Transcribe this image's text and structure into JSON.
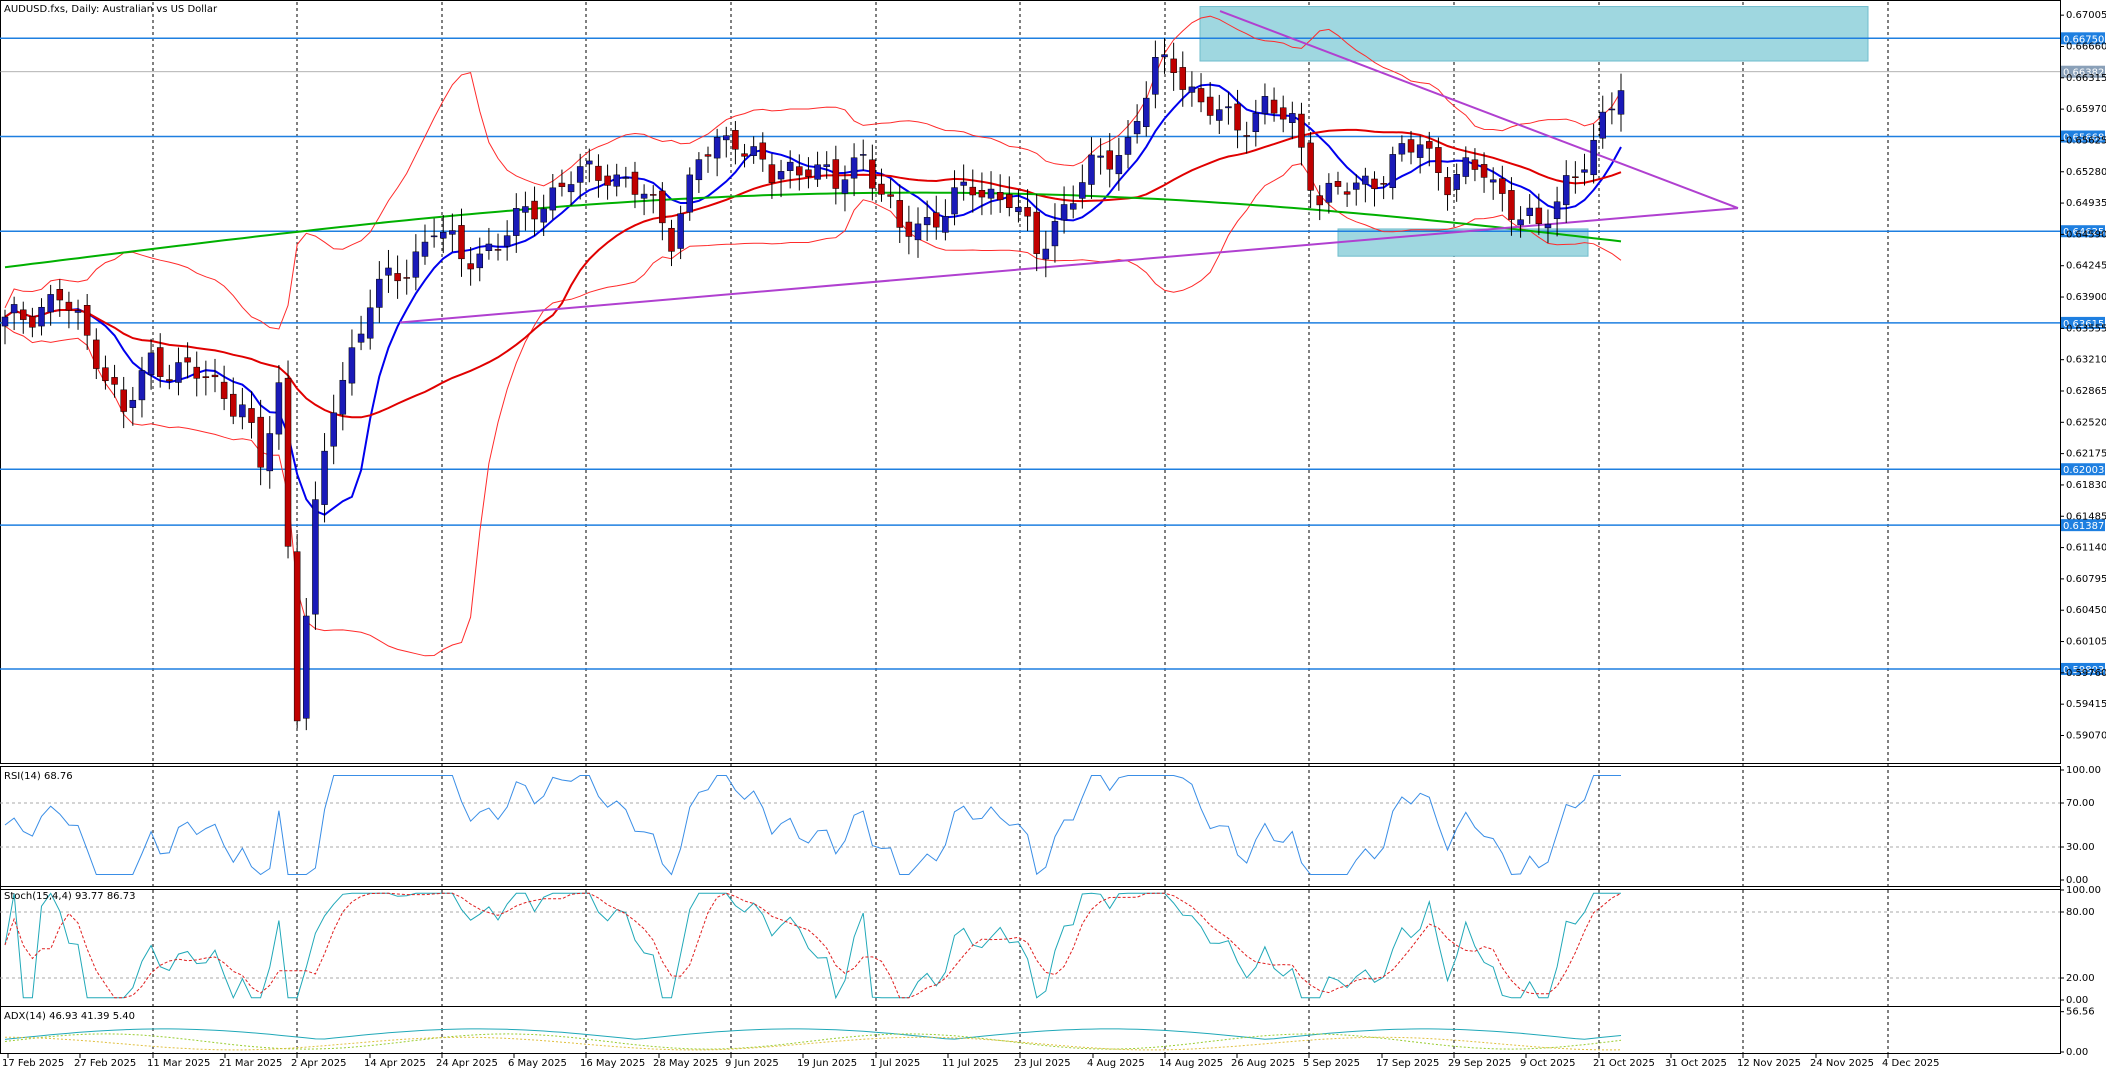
{
  "header": {
    "title": "AUDUSD.fxs, Daily:  Australian vs US Dollar"
  },
  "indicators": {
    "rsi": "RSI(14) 68.76",
    "stoch": "Stoch(15,4,4) 93.77 86.73",
    "adx": "ADX(14) 46.93 41.39 5.40"
  },
  "colors": {
    "bull": "#1a1ab8",
    "bear": "#c00000",
    "bb": "#ff2b2b",
    "ma_fast": "#0000ee",
    "ma_mid": "#e00000",
    "ma_slow": "#00b000",
    "trend": "#b040d0",
    "hline": "#1e7fe0",
    "zone": "#9fd7e0"
  },
  "price_axis": {
    "ticks": [
      "0.67005",
      "0.66660",
      "0.66315",
      "0.65970",
      "0.65625",
      "0.65280",
      "0.64935",
      "0.64590",
      "0.64245",
      "0.63900",
      "0.63555",
      "0.63210",
      "0.62865",
      "0.62520",
      "0.62175",
      "0.61830",
      "0.61485",
      "0.61140",
      "0.60795",
      "0.60450",
      "0.60105",
      "0.59760",
      "0.59415",
      "0.59070"
    ],
    "range": [
      0.588,
      0.6715
    ]
  },
  "levels": [
    {
      "label": "0.66750",
      "value": 0.6675
    },
    {
      "label": "0.65668",
      "value": 0.65668
    },
    {
      "label": "0.64625",
      "value": 0.64625
    },
    {
      "label": "0.63615",
      "value": 0.63615
    },
    {
      "label": "0.62003",
      "value": 0.62003
    },
    {
      "label": "0.61387",
      "value": 0.61387
    },
    {
      "label": "0.59803",
      "value": 0.59803
    }
  ],
  "current_price": {
    "label": "0.66382",
    "value": 0.66382
  },
  "rsi_axis": [
    "100.00",
    "70.00",
    "30.00",
    "0.00"
  ],
  "stoch_axis": [
    "100.00",
    "80.00",
    "20.00",
    "0.00"
  ],
  "adx_axis": [
    "56.56",
    "0.00"
  ],
  "dates": [
    "17 Feb 2025",
    "27 Feb 2025",
    "11 Mar 2025",
    "21 Mar 2025",
    "2 Apr 2025",
    "14 Apr 2025",
    "24 Apr 2025",
    "6 May 2025",
    "16 May 2025",
    "28 May 2025",
    "9 Jun 2025",
    "19 Jun 2025",
    "1 Jul 2025",
    "11 Jul 2025",
    "23 Jul 2025",
    "4 Aug 2025",
    "14 Aug 2025",
    "26 Aug 2025",
    "5 Sep 2025",
    "17 Sep 2025",
    "29 Sep 2025",
    "9 Oct 2025",
    "21 Oct 2025",
    "31 Oct 2025",
    "12 Nov 2025",
    "24 Nov 2025",
    "4 Dec 2025"
  ],
  "chart_data": {
    "type": "candlestick",
    "symbol": "AUDUSD.fxs",
    "timeframe": "Daily",
    "anchors": [
      [
        0,
        0.636
      ],
      [
        6,
        0.639
      ],
      [
        10,
        0.633
      ],
      [
        13,
        0.626
      ],
      [
        16,
        0.632
      ],
      [
        22,
        0.63
      ],
      [
        26,
        0.627
      ],
      [
        28,
        0.62
      ],
      [
        30,
        0.629
      ],
      [
        32,
        0.594
      ],
      [
        34,
        0.615
      ],
      [
        36,
        0.627
      ],
      [
        40,
        0.639
      ],
      [
        44,
        0.642
      ],
      [
        47,
        0.647
      ],
      [
        50,
        0.643
      ],
      [
        54,
        0.645
      ],
      [
        58,
        0.649
      ],
      [
        62,
        0.652
      ],
      [
        66,
        0.653
      ],
      [
        70,
        0.65
      ],
      [
        73,
        0.646
      ],
      [
        76,
        0.654
      ],
      [
        80,
        0.657
      ],
      [
        84,
        0.652
      ],
      [
        88,
        0.654
      ],
      [
        91,
        0.651
      ],
      [
        94,
        0.655
      ],
      [
        98,
        0.646
      ],
      [
        102,
        0.648
      ],
      [
        106,
        0.651
      ],
      [
        110,
        0.65
      ],
      [
        113,
        0.644
      ],
      [
        116,
        0.649
      ],
      [
        120,
        0.654
      ],
      [
        123,
        0.656
      ],
      [
        126,
        0.664
      ],
      [
        128,
        0.665
      ],
      [
        131,
        0.66
      ],
      [
        135,
        0.658
      ],
      [
        138,
        0.66
      ],
      [
        141,
        0.658
      ],
      [
        144,
        0.65
      ],
      [
        148,
        0.651
      ],
      [
        151,
        0.653
      ],
      [
        155,
        0.656
      ],
      [
        158,
        0.652
      ],
      [
        162,
        0.653
      ],
      [
        165,
        0.649
      ],
      [
        168,
        0.646
      ],
      [
        171,
        0.652
      ],
      [
        174,
        0.655
      ],
      [
        177,
        0.663
      ]
    ],
    "indicator_lines": [
      "Bollinger Bands",
      "MA fast (blue)",
      "MA mid (red)",
      "MA slow (green)",
      "Trendlines (purple)"
    ],
    "rsi_levels": [
      70,
      30
    ],
    "stoch_levels": [
      80,
      20
    ]
  }
}
